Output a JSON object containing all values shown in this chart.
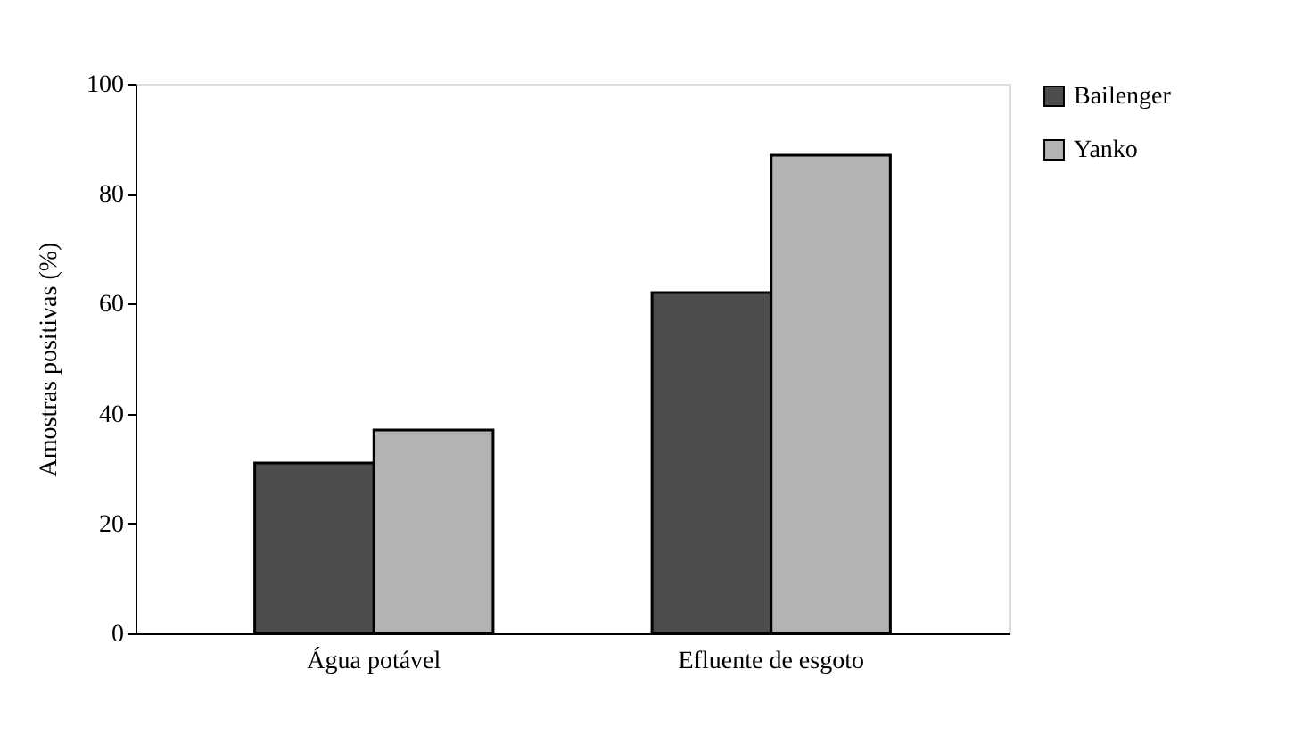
{
  "chart_data": {
    "type": "bar",
    "ylabel": "Amostras positivas (%)",
    "categories": [
      "Água potável",
      "Efluente de esgoto"
    ],
    "series": [
      {
        "name": "Bailenger",
        "color": "#4d4d4d",
        "values": [
          31,
          62
        ]
      },
      {
        "name": "Yanko",
        "color": "#b3b3b3",
        "values": [
          37,
          87
        ]
      }
    ],
    "ylim": [
      0,
      100
    ],
    "yticks": [
      0,
      20,
      40,
      60,
      80,
      100
    ],
    "grid": false,
    "legend": "top right"
  }
}
